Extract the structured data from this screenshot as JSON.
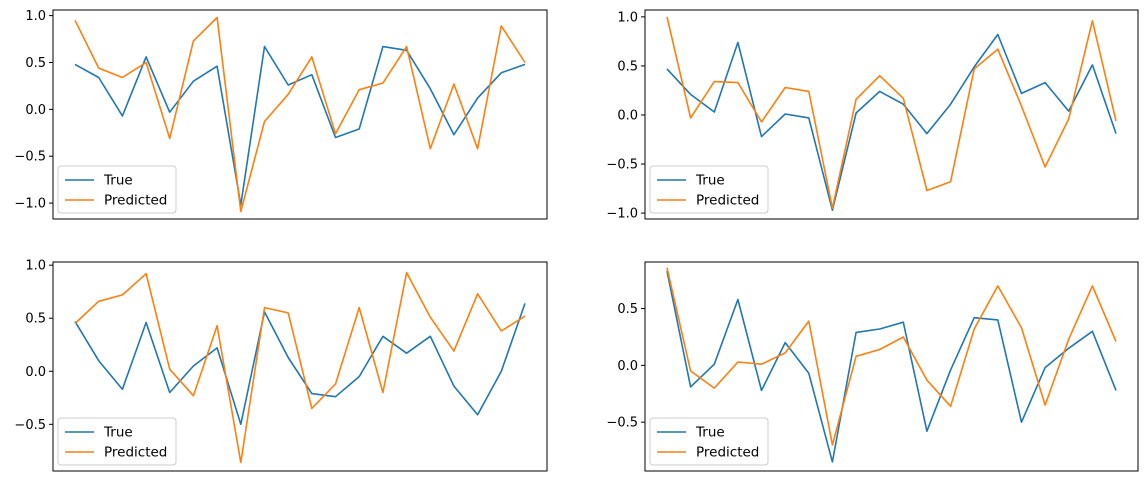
{
  "colors": {
    "true": "#1f77b4",
    "predicted": "#ff7f0e"
  },
  "chart_data": [
    {
      "type": "line",
      "legend_position": "lower-left",
      "grid": false,
      "x": [
        0,
        1,
        2,
        3,
        4,
        5,
        6,
        7,
        8,
        9,
        10,
        11,
        12,
        13,
        14,
        15,
        16,
        17,
        18,
        19
      ],
      "ylim": [
        -1.17,
        1.06
      ],
      "yticks": [
        {
          "value": 1.0,
          "label": "1.0"
        },
        {
          "value": 0.5,
          "label": "0.5"
        },
        {
          "value": 0.0,
          "label": "0.0"
        },
        {
          "value": -0.5,
          "label": "−0.5"
        },
        {
          "value": -1.0,
          "label": "−1.0"
        }
      ],
      "series": [
        {
          "name": "True",
          "values": [
            0.48,
            0.34,
            -0.07,
            0.56,
            -0.03,
            0.3,
            0.46,
            -1.02,
            0.67,
            0.26,
            0.37,
            -0.3,
            -0.21,
            0.67,
            0.63,
            0.22,
            -0.27,
            0.12,
            0.39,
            0.48
          ]
        },
        {
          "name": "Predicted",
          "values": [
            0.95,
            0.44,
            0.34,
            0.5,
            -0.31,
            0.73,
            0.98,
            -1.09,
            -0.13,
            0.16,
            0.56,
            -0.26,
            0.21,
            0.28,
            0.67,
            -0.42,
            0.27,
            -0.42,
            0.89,
            0.5
          ]
        }
      ]
    },
    {
      "type": "line",
      "legend_position": "lower-left",
      "grid": false,
      "x": [
        0,
        1,
        2,
        3,
        4,
        5,
        6,
        7,
        8,
        9,
        10,
        11,
        12,
        13,
        14,
        15,
        16,
        17,
        18,
        19
      ],
      "ylim": [
        -1.06,
        1.07
      ],
      "yticks": [
        {
          "value": 1.0,
          "label": "1.0"
        },
        {
          "value": 0.5,
          "label": "0.5"
        },
        {
          "value": 0.0,
          "label": "0.0"
        },
        {
          "value": -0.5,
          "label": "−0.5"
        },
        {
          "value": -1.0,
          "label": "−1.0"
        }
      ],
      "series": [
        {
          "name": "True",
          "values": [
            0.47,
            0.21,
            0.03,
            0.74,
            -0.22,
            0.01,
            -0.03,
            -0.97,
            0.02,
            0.24,
            0.11,
            -0.19,
            0.11,
            0.49,
            0.82,
            0.22,
            0.33,
            0.04,
            0.51,
            -0.19
          ]
        },
        {
          "name": "Predicted",
          "values": [
            1.0,
            -0.03,
            0.34,
            0.33,
            -0.07,
            0.28,
            0.24,
            -0.95,
            0.16,
            0.4,
            0.17,
            -0.77,
            -0.68,
            0.47,
            0.67,
            0.09,
            -0.53,
            -0.04,
            0.96,
            -0.06
          ]
        }
      ]
    },
    {
      "type": "line",
      "legend_position": "lower-left",
      "grid": false,
      "x": [
        0,
        1,
        2,
        3,
        4,
        5,
        6,
        7,
        8,
        9,
        10,
        11,
        12,
        13,
        14,
        15,
        16,
        17,
        18,
        19
      ],
      "ylim": [
        -0.94,
        1.03
      ],
      "yticks": [
        {
          "value": 1.0,
          "label": "1.0"
        },
        {
          "value": 0.5,
          "label": "0.5"
        },
        {
          "value": 0.0,
          "label": "0.0"
        },
        {
          "value": -0.5,
          "label": "−0.5"
        }
      ],
      "series": [
        {
          "name": "True",
          "values": [
            0.47,
            0.1,
            -0.17,
            0.46,
            -0.2,
            0.05,
            0.22,
            -0.5,
            0.56,
            0.13,
            -0.21,
            -0.24,
            -0.05,
            0.33,
            0.17,
            0.33,
            -0.14,
            -0.41,
            0.0,
            0.64
          ]
        },
        {
          "name": "Predicted",
          "values": [
            0.45,
            0.66,
            0.72,
            0.92,
            0.02,
            -0.23,
            0.43,
            -0.86,
            0.6,
            0.55,
            -0.35,
            -0.12,
            0.6,
            -0.2,
            0.93,
            0.51,
            0.19,
            0.73,
            0.38,
            0.52
          ]
        }
      ]
    },
    {
      "type": "line",
      "legend_position": "lower-left",
      "grid": false,
      "x": [
        0,
        1,
        2,
        3,
        4,
        5,
        6,
        7,
        8,
        9,
        10,
        11,
        12,
        13,
        14,
        15,
        16,
        17,
        18,
        19
      ],
      "ylim": [
        -0.93,
        0.91
      ],
      "yticks": [
        {
          "value": 0.5,
          "label": "0.5"
        },
        {
          "value": 0.0,
          "label": "0.0"
        },
        {
          "value": -0.5,
          "label": "−0.5"
        }
      ],
      "series": [
        {
          "name": "True",
          "values": [
            0.83,
            -0.19,
            0.01,
            0.58,
            -0.22,
            0.2,
            -0.07,
            -0.85,
            0.29,
            0.32,
            0.38,
            -0.58,
            -0.04,
            0.42,
            0.4,
            -0.5,
            -0.02,
            0.15,
            0.3,
            -0.22
          ]
        },
        {
          "name": "Predicted",
          "values": [
            0.86,
            -0.05,
            -0.2,
            0.03,
            0.01,
            0.11,
            0.39,
            -0.7,
            0.08,
            0.14,
            0.25,
            -0.13,
            -0.36,
            0.32,
            0.7,
            0.33,
            -0.35,
            0.23,
            0.7,
            0.21
          ]
        }
      ]
    }
  ]
}
